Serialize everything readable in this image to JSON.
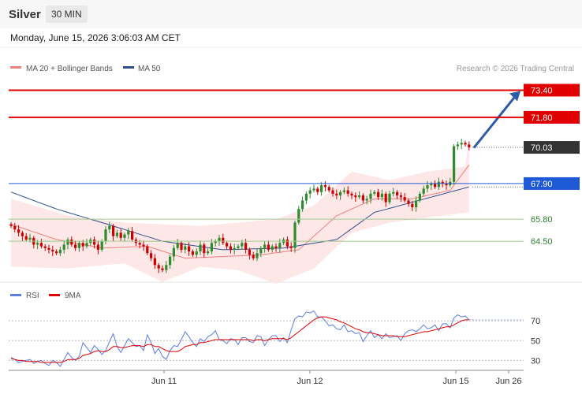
{
  "header": {
    "symbol": "Silver",
    "interval": "30 MIN",
    "timestamp": "Monday, June 15, 2026 3:06:03 AM CET"
  },
  "attribution": "Research © 2026 Trading Central",
  "colors": {
    "resistance": "#e00000",
    "pivot": "#1f5ad6",
    "support": "#9ccc8a",
    "candle_up": "#2e8b2e",
    "candle_down": "#cc0000",
    "bollinger_fill": "#fde3e3",
    "ma20": "#f08080",
    "ma50": "#2e4f8c",
    "rsi": "#5b7fe0",
    "rsi_ma": "#e00000",
    "arrow": "#2f5aa8",
    "last_price": "#333333"
  },
  "chart_data": [
    {
      "type": "candlestick",
      "title": "Silver",
      "legend": [
        {
          "name": "MA 20 + Bollinger Bands",
          "color": "#f08080"
        },
        {
          "name": "MA 50",
          "color": "#2e4f8c"
        }
      ],
      "legend_position": "top-left",
      "ylim": [
        62.0,
        75.0
      ],
      "x_ticks": [
        "Jun 11",
        "Jun 12",
        "Jun 15",
        "Jun 26"
      ],
      "levels": [
        {
          "value": 73.4,
          "label": "73.40",
          "kind": "resistance"
        },
        {
          "value": 71.8,
          "label": "71.80",
          "kind": "resistance"
        },
        {
          "value": 70.03,
          "label": "70.03",
          "kind": "last"
        },
        {
          "value": 67.9,
          "label": "67.90",
          "kind": "pivot"
        },
        {
          "value": 65.8,
          "label": "65.80",
          "kind": "support"
        },
        {
          "value": 64.5,
          "label": "64.50",
          "kind": "support"
        }
      ],
      "projection": {
        "from": 70.0,
        "to": 73.4
      },
      "closes": [
        65.4,
        65.2,
        65.0,
        64.8,
        64.6,
        64.7,
        64.3,
        64.4,
        64.2,
        64.1,
        64.0,
        63.9,
        63.8,
        64.0,
        64.3,
        64.6,
        64.3,
        64.1,
        64.4,
        64.2,
        64.4,
        64.6,
        64.3,
        64.0,
        64.5,
        65.2,
        65.4,
        64.8,
        65.0,
        64.7,
        64.9,
        65.1,
        64.6,
        64.4,
        64.3,
        64.2,
        63.8,
        63.5,
        63.1,
        62.9,
        62.8,
        63.1,
        63.6,
        64.1,
        64.4,
        64.0,
        64.2,
        63.9,
        63.7,
        63.9,
        64.3,
        63.8,
        63.9,
        64.4,
        64.5,
        64.7,
        64.4,
        64.2,
        64.0,
        64.1,
        64.2,
        64.4,
        64.0,
        63.7,
        63.5,
        63.8,
        64.1,
        64.3,
        64.0,
        64.2,
        64.1,
        64.4,
        64.6,
        64.2,
        64.1,
        65.6,
        66.4,
        66.9,
        67.3,
        67.5,
        67.6,
        67.4,
        67.8,
        67.7,
        67.5,
        67.3,
        67.2,
        67.4,
        67.5,
        67.3,
        67.2,
        67.1,
        67.2,
        66.9,
        67.0,
        67.3,
        67.4,
        67.1,
        67.3,
        66.8,
        67.3,
        67.4,
        67.2,
        67.1,
        66.9,
        66.7,
        66.5,
        66.9,
        67.3,
        67.6,
        67.8,
        67.9,
        67.7,
        68.0,
        67.9,
        67.8,
        68.0,
        70.1,
        70.2,
        70.3,
        70.2,
        70.03
      ],
      "bb_upper_points": [
        [
          0,
          67.0
        ],
        [
          15,
          66.0
        ],
        [
          30,
          65.6
        ],
        [
          50,
          65.4
        ],
        [
          60,
          65.6
        ],
        [
          70,
          65.8
        ],
        [
          80,
          66.6
        ],
        [
          90,
          68.6
        ],
        [
          100,
          68.1
        ],
        [
          110,
          68.6
        ],
        [
          120,
          68.9
        ],
        [
          121,
          70.5
        ]
      ],
      "bb_lower_points": [
        [
          0,
          63.0
        ],
        [
          15,
          62.9
        ],
        [
          30,
          63.2
        ],
        [
          40,
          62.1
        ],
        [
          50,
          63.0
        ],
        [
          60,
          62.8
        ],
        [
          70,
          62.0
        ],
        [
          80,
          62.9
        ],
        [
          90,
          65.0
        ],
        [
          100,
          65.6
        ],
        [
          110,
          65.9
        ],
        [
          121,
          66.2
        ]
      ],
      "ma20_points": [
        [
          0,
          65.5
        ],
        [
          12,
          64.6
        ],
        [
          24,
          64.1
        ],
        [
          36,
          64.2
        ],
        [
          46,
          63.5
        ],
        [
          56,
          63.6
        ],
        [
          66,
          63.7
        ],
        [
          76,
          64.0
        ],
        [
          86,
          66.0
        ],
        [
          96,
          67.0
        ],
        [
          106,
          67.0
        ],
        [
          116,
          67.5
        ],
        [
          121,
          69.0
        ]
      ],
      "ma50_points": [
        [
          0,
          67.4
        ],
        [
          12,
          66.4
        ],
        [
          24,
          65.6
        ],
        [
          40,
          64.5
        ],
        [
          56,
          64.0
        ],
        [
          72,
          64.1
        ],
        [
          86,
          64.6
        ],
        [
          96,
          66.2
        ],
        [
          106,
          66.8
        ],
        [
          116,
          67.4
        ],
        [
          121,
          67.7
        ]
      ]
    },
    {
      "type": "line",
      "title": "RSI",
      "legend": [
        {
          "name": "RSI",
          "color": "#5b7fe0"
        },
        {
          "name": "9MA",
          "color": "#e00000"
        }
      ],
      "legend_position": "top-left",
      "ylim": [
        20,
        90
      ],
      "y_ticks": [
        70,
        50,
        30
      ],
      "series": [
        {
          "name": "RSI",
          "values": [
            33,
            31,
            28,
            29,
            30,
            31,
            27,
            29,
            30,
            27,
            25,
            30,
            28,
            24,
            31,
            38,
            33,
            30,
            34,
            48,
            43,
            38,
            45,
            41,
            36,
            40,
            49,
            57,
            44,
            38,
            45,
            52,
            48,
            44,
            45,
            40,
            56,
            48,
            37,
            42,
            34,
            31,
            40,
            45,
            44,
            51,
            59,
            54,
            48,
            44,
            52,
            49,
            54,
            56,
            60,
            51,
            50,
            47,
            52,
            51,
            46,
            53,
            53,
            49,
            48,
            55,
            54,
            45,
            51,
            55,
            55,
            49,
            53,
            48,
            61,
            72,
            75,
            74,
            79,
            78,
            80,
            74,
            74,
            70,
            65,
            66,
            62,
            61,
            66,
            59,
            60,
            57,
            58,
            49,
            55,
            60,
            53,
            56,
            52,
            57,
            53,
            54,
            55,
            50,
            57,
            60,
            61,
            59,
            62,
            66,
            62,
            63,
            66,
            60,
            67,
            67,
            63,
            73,
            76,
            74,
            75,
            71
          ]
        },
        {
          "name": "9MA",
          "values": [
            32,
            31,
            30,
            30,
            29,
            29,
            29,
            29,
            28,
            28,
            28,
            28,
            28,
            28,
            29,
            31,
            31,
            31,
            32,
            35,
            36,
            37,
            39,
            40,
            39,
            39,
            41,
            44,
            44,
            43,
            43,
            44,
            45,
            45,
            45,
            44,
            46,
            46,
            44,
            44,
            42,
            40,
            39,
            39,
            39,
            41,
            44,
            45,
            46,
            46,
            48,
            48,
            49,
            50,
            51,
            51,
            51,
            51,
            51,
            51,
            51,
            51,
            51,
            51,
            50,
            51,
            51,
            50,
            51,
            52,
            52,
            52,
            52,
            51,
            53,
            56,
            59,
            62,
            65,
            68,
            71,
            73,
            74,
            74,
            73,
            72,
            71,
            69,
            68,
            66,
            64,
            62,
            61,
            59,
            58,
            58,
            57,
            56,
            55,
            55,
            55,
            55,
            54,
            54,
            54,
            55,
            56,
            57,
            58,
            59,
            59,
            60,
            61,
            62,
            63,
            64,
            64,
            66,
            68,
            70,
            71,
            71
          ]
        }
      ]
    }
  ]
}
